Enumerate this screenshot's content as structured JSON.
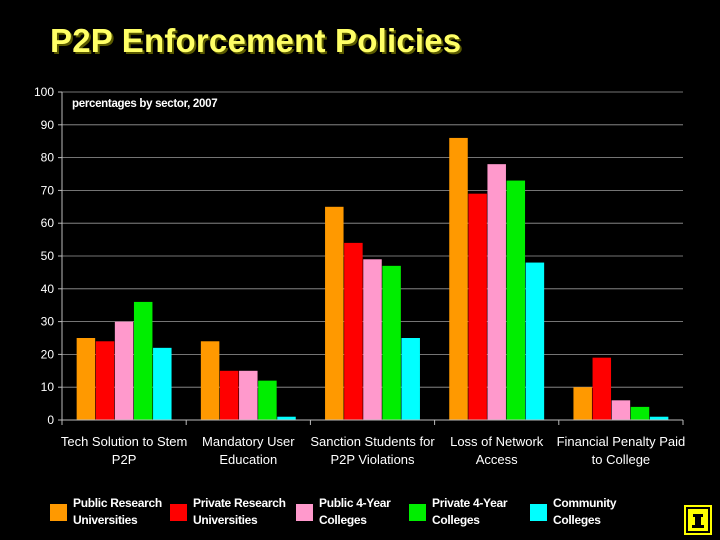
{
  "title": "P2P Enforcement Policies",
  "chart_data": {
    "type": "bar",
    "subtitle": "percentages by sector, 2007",
    "categories": [
      [
        "Tech Solution to Stem",
        "P2P"
      ],
      [
        "Mandatory User",
        "Education"
      ],
      [
        "Sanction Students for",
        "P2P Violations"
      ],
      [
        "Loss of Network",
        "Access"
      ],
      [
        "Financial Penalty Paid",
        "to College"
      ]
    ],
    "series": [
      {
        "name": [
          "Public Research",
          "Universities"
        ],
        "color": "#ff9900",
        "values": [
          25,
          24,
          65,
          86,
          10
        ]
      },
      {
        "name": [
          "Private Research",
          "Universities"
        ],
        "color": "#ff0000",
        "values": [
          24,
          15,
          54,
          69,
          19
        ]
      },
      {
        "name": [
          "Public  4-Year",
          "Colleges"
        ],
        "color": "#ff99cc",
        "values": [
          30,
          15,
          49,
          78,
          6
        ]
      },
      {
        "name": [
          "Private  4-Year",
          "Colleges"
        ],
        "color": "#00ee00",
        "values": [
          36,
          12,
          47,
          73,
          4
        ]
      },
      {
        "name": [
          "Community",
          "Colleges"
        ],
        "color": "#00ffff",
        "values": [
          22,
          1,
          25,
          48,
          1
        ]
      }
    ],
    "ylim": [
      0,
      100
    ],
    "yticks": [
      0,
      10,
      20,
      30,
      40,
      50,
      60,
      70,
      80,
      90,
      100
    ],
    "grid": true,
    "legend_position": "bottom"
  }
}
